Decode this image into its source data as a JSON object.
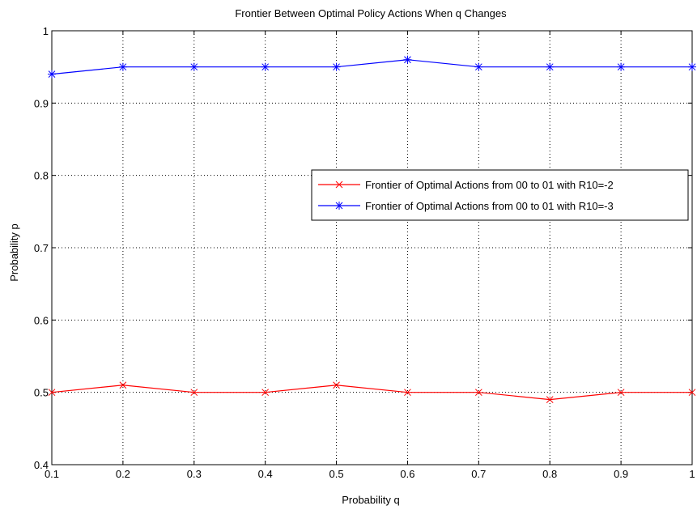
{
  "chart_data": {
    "type": "line",
    "title": "Frontier Between Optimal Policy Actions When q Changes",
    "xlabel": "Probability q",
    "ylabel": "Probability p",
    "xlim": [
      0.1,
      1
    ],
    "ylim": [
      0.4,
      1
    ],
    "x_ticks": [
      "0.1",
      "0.2",
      "0.3",
      "0.4",
      "0.5",
      "0.6",
      "0.7",
      "0.8",
      "0.9",
      "1"
    ],
    "y_ticks": [
      "0.4",
      "0.5",
      "0.6",
      "0.7",
      "0.8",
      "0.9",
      "1"
    ],
    "grid": true,
    "legend_position": "right",
    "x": [
      0.1,
      0.2,
      0.3,
      0.4,
      0.5,
      0.6,
      0.7,
      0.8,
      0.9,
      1.0
    ],
    "series": [
      {
        "name": "Frontier of Optimal Actions from 00 to 01 with R10=-2",
        "color": "#ff0000",
        "marker": "x",
        "values": [
          0.5,
          0.51,
          0.5,
          0.5,
          0.51,
          0.5,
          0.5,
          0.49,
          0.5,
          0.5
        ]
      },
      {
        "name": "Frontier of Optimal Actions from 00 to 01 with R10=-3",
        "color": "#0000ff",
        "marker": "star",
        "values": [
          0.94,
          0.95,
          0.95,
          0.95,
          0.95,
          0.96,
          0.95,
          0.95,
          0.95,
          0.95
        ]
      }
    ]
  }
}
